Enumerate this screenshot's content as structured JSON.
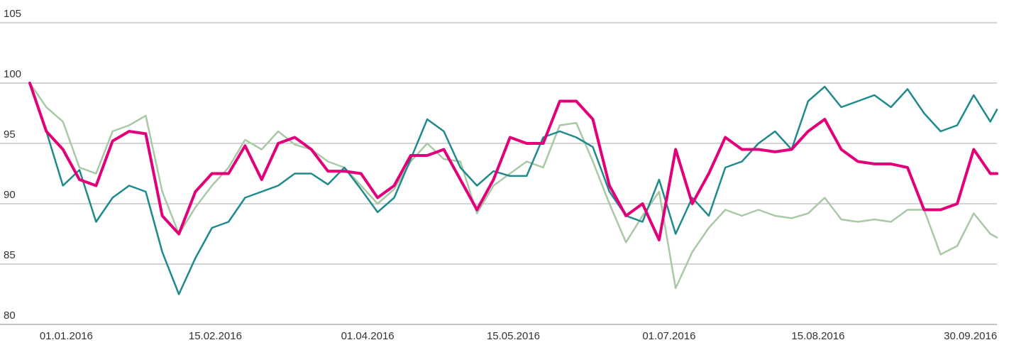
{
  "chart_data": {
    "type": "line",
    "x": [
      "21.12.2015",
      "26.12.2015",
      "31.12.2015",
      "05.01.2016",
      "10.01.2016",
      "15.01.2016",
      "20.01.2016",
      "25.01.2016",
      "30.01.2016",
      "04.02.2016",
      "09.02.2016",
      "14.02.2016",
      "19.02.2016",
      "24.02.2016",
      "29.02.2016",
      "05.03.2016",
      "10.03.2016",
      "15.03.2016",
      "20.03.2016",
      "25.03.2016",
      "30.03.2016",
      "04.04.2016",
      "09.04.2016",
      "14.04.2016",
      "19.04.2016",
      "24.04.2016",
      "29.04.2016",
      "04.05.2016",
      "09.05.2016",
      "14.05.2016",
      "19.05.2016",
      "24.05.2016",
      "29.05.2016",
      "03.06.2016",
      "08.06.2016",
      "13.06.2016",
      "18.06.2016",
      "23.06.2016",
      "28.06.2016",
      "03.07.2016",
      "08.07.2016",
      "13.07.2016",
      "18.07.2016",
      "23.07.2016",
      "28.07.2016",
      "02.08.2016",
      "07.08.2016",
      "12.08.2016",
      "17.08.2016",
      "22.08.2016",
      "27.08.2016",
      "01.09.2016",
      "06.09.2016",
      "11.09.2016",
      "16.09.2016",
      "21.09.2016",
      "26.09.2016",
      "01.10.2016",
      "06.10.2016",
      "08.10.2016"
    ],
    "series": [
      {
        "color": "#a9c8a6",
        "width": 2.5,
        "values": [
          100,
          98,
          96.8,
          93,
          92.5,
          96,
          96.5,
          97.3,
          91,
          87.5,
          89.7,
          91.5,
          93,
          95.3,
          94.5,
          96,
          94.9,
          94.5,
          93.5,
          93,
          91.5,
          90,
          91.2,
          93.5,
          95,
          93.7,
          93.5,
          89.2,
          91.5,
          92.5,
          93.5,
          93,
          96.5,
          96.7,
          93.5,
          90,
          86.8,
          89,
          91,
          83,
          86,
          88,
          89.5,
          89,
          89.5,
          89,
          88.8,
          89.2,
          90.5,
          88.7,
          88.5,
          88.7,
          88.5,
          89.5,
          89.5,
          85.8,
          86.5,
          89.2,
          87.5,
          87.2
        ]
      },
      {
        "color": "#1e8a8c",
        "width": 2.5,
        "values": [
          100,
          96,
          91.5,
          92.8,
          88.5,
          90.5,
          91.5,
          91,
          86,
          82.5,
          85.5,
          88,
          88.5,
          90.5,
          91,
          91.5,
          92.5,
          92.5,
          91.6,
          93,
          91.2,
          89.3,
          90.5,
          93.7,
          97,
          96,
          93,
          91.5,
          92.7,
          92.3,
          92.3,
          95.5,
          96,
          95.5,
          94.7,
          91,
          89,
          88.5,
          92,
          87.5,
          90.5,
          89,
          93,
          93.5,
          95,
          96,
          94.5,
          98.5,
          99.7,
          98,
          98.5,
          99,
          98,
          99.5,
          97.5,
          96,
          96.5,
          99,
          96.8,
          97.8
        ]
      },
      {
        "color": "#e2007a",
        "width": 4,
        "values": [
          100,
          96,
          94.5,
          92,
          91.5,
          95.2,
          96,
          95.8,
          89,
          87.5,
          91,
          92.5,
          92.5,
          94.8,
          92,
          95,
          95.5,
          94.5,
          92.7,
          92.7,
          92.5,
          90.5,
          91.5,
          94,
          94,
          94.5,
          92,
          89.5,
          92,
          95.5,
          95,
          95,
          98.5,
          98.5,
          97,
          91.5,
          89,
          90,
          87,
          94.5,
          90,
          92.5,
          95.5,
          94.5,
          94.5,
          94.3,
          94.5,
          96,
          97,
          94.5,
          93.5,
          93.3,
          93.3,
          93,
          89.5,
          89.5,
          90,
          94.5,
          92.5,
          92.5
        ]
      }
    ],
    "xlim": [
      "12.12.2015",
      "08.10.2016"
    ],
    "xticks": [
      "01.01.2016",
      "15.02.2016",
      "01.04.2016",
      "15.05.2016",
      "01.07.2016",
      "15.08.2016",
      "30.09.2016"
    ],
    "ylim": [
      80,
      105
    ],
    "yticks": [
      80,
      85,
      90,
      95,
      100,
      105
    ],
    "grid": true
  }
}
